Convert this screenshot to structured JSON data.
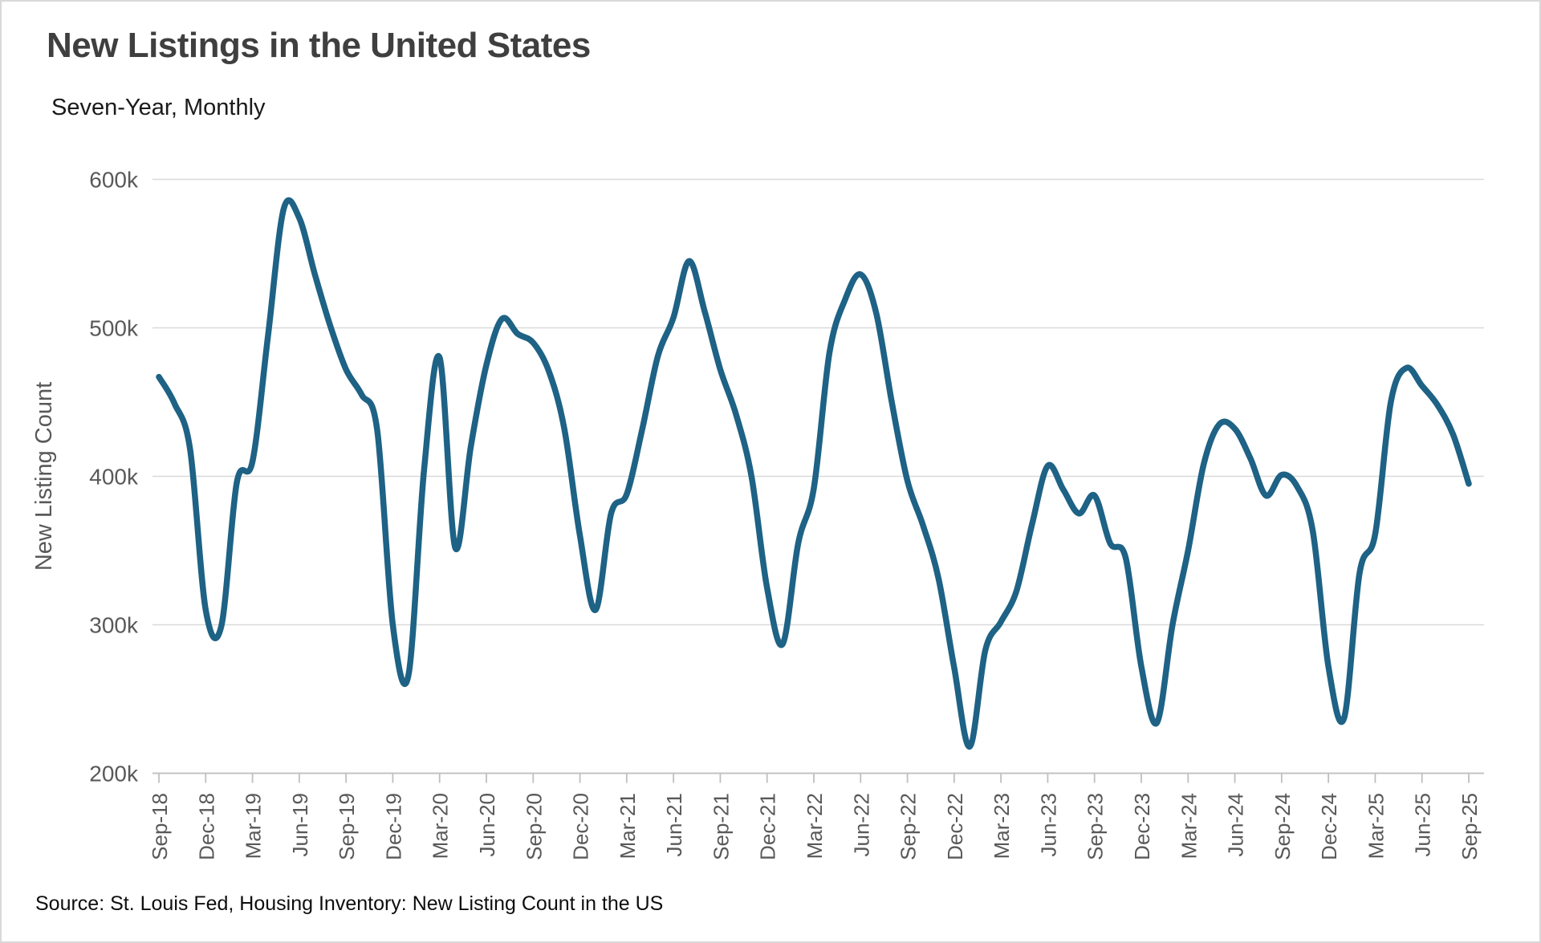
{
  "chart_data": {
    "type": "line",
    "title": "New Listings in the United States",
    "subtitle": "Seven-Year, Monthly",
    "source": "Source: St. Louis Fed, Housing Inventory: New Listing Count in the US",
    "ylabel": "New Listing Count",
    "xlabel": "",
    "units": "listings per month",
    "legend": "none",
    "grid": "horizontal-only",
    "ylim": [
      200000,
      600000
    ],
    "ytick_values": [
      200000,
      300000,
      400000,
      500000,
      600000
    ],
    "ytick_labels": [
      "200k",
      "300k",
      "400k",
      "500k",
      "600k"
    ],
    "xtick_every_months": 3,
    "xtick_labels": [
      "Sep-18",
      "Dec-18",
      "Mar-19",
      "Jun-19",
      "Sep-19",
      "Dec-19",
      "Mar-20",
      "Jun-20",
      "Sep-20",
      "Dec-20",
      "Mar-21",
      "Jun-21",
      "Sep-21",
      "Dec-21",
      "Mar-22",
      "Jun-22",
      "Sep-22",
      "Dec-22",
      "Mar-23",
      "Jun-23",
      "Sep-23",
      "Dec-23",
      "Mar-24",
      "Jun-24",
      "Sep-24",
      "Dec-24",
      "Mar-25",
      "Jun-25",
      "Sep-25"
    ],
    "line_color": "#1E6285",
    "grid_color": "#D9D9D9",
    "axis_color": "#BFBFBF",
    "tick_label_color": "#595959",
    "title_color": "#3F3F3F",
    "x": [
      "Sep-18",
      "Oct-18",
      "Nov-18",
      "Dec-18",
      "Jan-19",
      "Feb-19",
      "Mar-19",
      "Apr-19",
      "May-19",
      "Jun-19",
      "Jul-19",
      "Aug-19",
      "Sep-19",
      "Oct-19",
      "Nov-19",
      "Dec-19",
      "Jan-20",
      "Feb-20",
      "Mar-20",
      "Apr-20",
      "May-20",
      "Jun-20",
      "Jul-20",
      "Aug-20",
      "Sep-20",
      "Oct-20",
      "Nov-20",
      "Dec-20",
      "Jan-21",
      "Feb-21",
      "Mar-21",
      "Apr-21",
      "May-21",
      "Jun-21",
      "Jul-21",
      "Aug-21",
      "Sep-21",
      "Oct-21",
      "Nov-21",
      "Dec-21",
      "Jan-22",
      "Feb-22",
      "Mar-22",
      "Apr-22",
      "May-22",
      "Jun-22",
      "Jul-22",
      "Aug-22",
      "Sep-22",
      "Oct-22",
      "Nov-22",
      "Dec-22",
      "Jan-23",
      "Feb-23",
      "Mar-23",
      "Apr-23",
      "May-23",
      "Jun-23",
      "Jul-23",
      "Aug-23",
      "Sep-23",
      "Oct-23",
      "Nov-23",
      "Dec-23",
      "Jan-24",
      "Feb-24",
      "Mar-24",
      "Apr-24",
      "May-24",
      "Jun-24",
      "Jul-24",
      "Aug-24",
      "Sep-24",
      "Oct-24",
      "Nov-24",
      "Dec-24",
      "Jan-25",
      "Feb-25",
      "Mar-25",
      "Apr-25",
      "May-25",
      "Jun-25",
      "Jul-25",
      "Aug-25",
      "Sep-25"
    ],
    "values": [
      467000,
      449000,
      418000,
      310000,
      299000,
      396000,
      410000,
      495000,
      580000,
      574000,
      536000,
      501000,
      472000,
      455000,
      431000,
      300000,
      266000,
      404000,
      480000,
      352000,
      420000,
      475000,
      506000,
      496000,
      490000,
      471000,
      432000,
      360000,
      310000,
      375000,
      388000,
      432000,
      481000,
      507000,
      545000,
      511000,
      472000,
      442000,
      400000,
      325000,
      287000,
      355000,
      392000,
      483000,
      519000,
      536000,
      510000,
      450000,
      397000,
      367000,
      331000,
      271000,
      218000,
      283000,
      302000,
      323000,
      368000,
      407000,
      391000,
      375000,
      387000,
      355000,
      345000,
      272000,
      234000,
      300000,
      350000,
      408000,
      435000,
      432000,
      412000,
      387000,
      401000,
      393000,
      363000,
      272000,
      237000,
      335000,
      361000,
      450000,
      473000,
      461000,
      448000,
      428000,
      395000
    ]
  }
}
